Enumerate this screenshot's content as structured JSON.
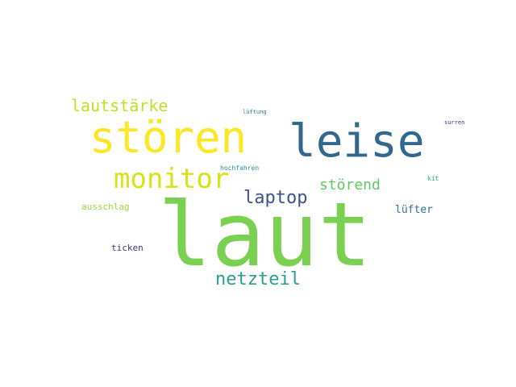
{
  "words": [
    {
      "text": "laut",
      "color": "#7ad151"
    },
    {
      "text": "leise",
      "color": "#31688e"
    },
    {
      "text": "stören",
      "color": "#fde725"
    },
    {
      "text": "monitor",
      "color": "#d8e219"
    },
    {
      "text": "lautstärke",
      "color": "#bddf26"
    },
    {
      "text": "laptop",
      "color": "#3b528b"
    },
    {
      "text": "störend",
      "color": "#5ec962"
    },
    {
      "text": "netzteil",
      "color": "#2a9d8f"
    },
    {
      "text": "lüfter",
      "color": "#2c728e"
    },
    {
      "text": "ausschlag",
      "color": "#95d840"
    },
    {
      "text": "ticken",
      "color": "#472d7b"
    },
    {
      "text": "hochfahren",
      "color": "#21918c"
    },
    {
      "text": "lüftung",
      "color": "#2a788e"
    },
    {
      "text": "surren",
      "color": "#482878"
    },
    {
      "text": "kit",
      "color": "#22a884"
    }
  ]
}
